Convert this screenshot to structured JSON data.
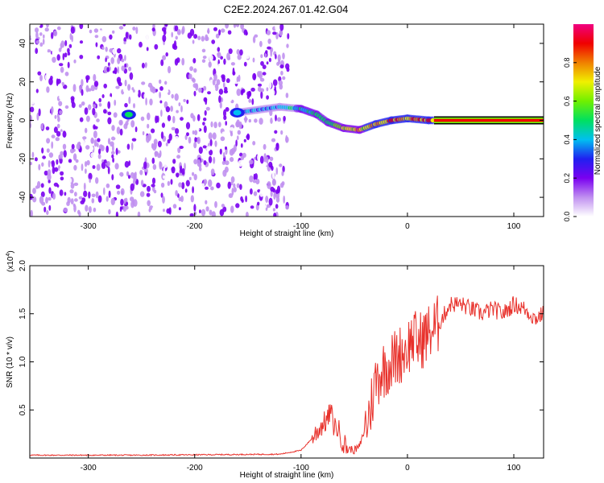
{
  "title": "C2E2.2024.267.01.42.G04",
  "colors": {
    "snr_line": "#e8302a",
    "background": "#ffffff",
    "axes": "#000000"
  },
  "chart_data": [
    {
      "type": "heatmap",
      "name": "spectrogram",
      "xlabel": "Height of straight line (km)",
      "ylabel": "Frequency (Hz)",
      "xlim": [
        -355,
        128
      ],
      "ylim": [
        -50,
        50
      ],
      "xticks": [
        -300,
        -200,
        -100,
        0,
        100
      ],
      "xtick_labels": [
        "-300",
        "-200",
        "-100",
        "0",
        "100"
      ],
      "yticks": [
        -40,
        -20,
        0,
        20,
        40
      ],
      "ytick_labels": [
        "-40",
        "-20",
        "0",
        "20",
        "40"
      ],
      "colorbar": {
        "label": "Normalized spectral amplitude",
        "range": [
          0,
          1
        ],
        "ticks": [
          0.0,
          0.2,
          0.4,
          0.6,
          0.8
        ],
        "tick_labels": [
          "0.0",
          "0.2",
          "0.4",
          "0.6",
          "0.8"
        ],
        "colormap": [
          "#ffffff",
          "#c090f0",
          "#7a00f0",
          "#2020f0",
          "#00c0f0",
          "#00e060",
          "#70f000",
          "#f0f000",
          "#f08000",
          "#f00000",
          "#f00080"
        ]
      },
      "noise_region_x": [
        -355,
        -112
      ],
      "signal_track": [
        {
          "x": -262,
          "f": 3,
          "amp": 0.45
        },
        {
          "x": -160,
          "f": 4,
          "amp": 0.4
        },
        {
          "x": -120,
          "f": 7,
          "amp": 0.35
        },
        {
          "x": -100,
          "f": 6,
          "amp": 0.45
        },
        {
          "x": -85,
          "f": 3,
          "amp": 0.5
        },
        {
          "x": -75,
          "f": -1,
          "amp": 0.45
        },
        {
          "x": -60,
          "f": -4,
          "amp": 0.65
        },
        {
          "x": -45,
          "f": -5,
          "amp": 0.7
        },
        {
          "x": -30,
          "f": -2,
          "amp": 0.75
        },
        {
          "x": -15,
          "f": 0,
          "amp": 0.8
        },
        {
          "x": 0,
          "f": 1,
          "amp": 0.75
        },
        {
          "x": 20,
          "f": 0,
          "amp": 0.85
        },
        {
          "x": 60,
          "f": 0,
          "amp": 0.9
        },
        {
          "x": 128,
          "f": 0,
          "amp": 0.95
        }
      ]
    },
    {
      "type": "line",
      "name": "snr",
      "xlabel": "Height of straight line (km)",
      "ylabel": "SNR (10 * v/v)",
      "exponent_label": "(x10",
      "exponent_value": "4",
      "xlim": [
        -355,
        128
      ],
      "ylim": [
        0,
        2.0
      ],
      "xticks": [
        -300,
        -200,
        -100,
        0,
        100
      ],
      "xtick_labels": [
        "-300",
        "-200",
        "-100",
        "0",
        "100"
      ],
      "yticks": [
        0.5,
        1.0,
        1.5,
        2.0
      ],
      "ytick_labels": [
        "0.5",
        "1.0",
        "1.5",
        "2.0"
      ],
      "series": [
        {
          "name": "SNR",
          "x": [
            -355,
            -250,
            -120,
            -100,
            -90,
            -80,
            -75,
            -72,
            -70,
            -65,
            -60,
            -55,
            -50,
            -45,
            -40,
            -35,
            -30,
            -25,
            -20,
            -15,
            -10,
            -5,
            0,
            5,
            10,
            20,
            30,
            40,
            50,
            60,
            70,
            80,
            90,
            100,
            110,
            120,
            128
          ],
          "y": [
            0.03,
            0.03,
            0.04,
            0.08,
            0.2,
            0.35,
            0.4,
            0.5,
            0.35,
            0.3,
            0.15,
            0.1,
            0.08,
            0.12,
            0.3,
            0.5,
            0.8,
            0.9,
            0.95,
            1.0,
            1.05,
            1.1,
            1.15,
            1.25,
            1.2,
            1.3,
            1.4,
            1.6,
            1.6,
            1.55,
            1.5,
            1.55,
            1.5,
            1.6,
            1.55,
            1.45,
            1.5
          ]
        }
      ]
    }
  ]
}
